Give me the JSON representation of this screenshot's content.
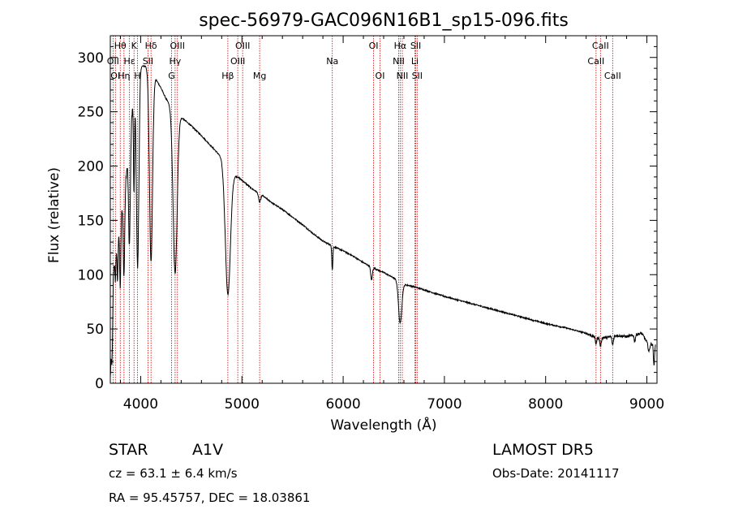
{
  "title": "spec-56979-GAC096N16B1_sp15-096.fits",
  "chart_data": {
    "type": "line",
    "title": "spec-56979-GAC096N16B1_sp15-096.fits",
    "xlabel": "Wavelength (Å)",
    "ylabel": "Flux (relative)",
    "xlim": [
      3700,
      9100
    ],
    "ylim": [
      0,
      320
    ],
    "x_ticks": [
      4000,
      5000,
      6000,
      7000,
      8000,
      9000
    ],
    "y_ticks": [
      0,
      50,
      100,
      150,
      200,
      250,
      300
    ],
    "grid": false,
    "line_color": "#000000",
    "marker_color": "#cc0000",
    "spectral_lines": [
      {
        "label": "Hθ",
        "wavelength": 3798,
        "row": 0
      },
      {
        "label": "OII",
        "wavelength": 3727,
        "row": 1
      },
      {
        "label": "OI",
        "wavelength": 3750,
        "row": 2
      },
      {
        "label": "Hη",
        "wavelength": 3835,
        "row": 2
      },
      {
        "label": "Hε",
        "wavelength": 3889,
        "row": 1
      },
      {
        "label": "K",
        "wavelength": 3934,
        "row": 0
      },
      {
        "label": "H",
        "wavelength": 3969,
        "row": 2
      },
      {
        "label": "SII",
        "wavelength": 4072,
        "row": 1
      },
      {
        "label": "Hδ",
        "wavelength": 4102,
        "row": 0
      },
      {
        "label": "OIII",
        "wavelength": 4363,
        "row": 0
      },
      {
        "label": "Hγ",
        "wavelength": 4340,
        "row": 1
      },
      {
        "label": "G",
        "wavelength": 4305,
        "row": 2
      },
      {
        "label": "Hβ",
        "wavelength": 4861,
        "row": 2
      },
      {
        "label": "OIII",
        "wavelength": 4959,
        "row": 1
      },
      {
        "label": "OIII",
        "wavelength": 5007,
        "row": 0
      },
      {
        "label": "Mg",
        "wavelength": 5175,
        "row": 2
      },
      {
        "label": "Na",
        "wavelength": 5893,
        "row": 1
      },
      {
        "label": "OI",
        "wavelength": 6300,
        "row": 0
      },
      {
        "label": "OI",
        "wavelength": 6364,
        "row": 2
      },
      {
        "label": "NII",
        "wavelength": 6548,
        "row": 1
      },
      {
        "label": "Hα",
        "wavelength": 6563,
        "row": 0
      },
      {
        "label": "NII",
        "wavelength": 6584,
        "row": 2
      },
      {
        "label": "Li",
        "wavelength": 6708,
        "row": 1
      },
      {
        "label": "SII",
        "wavelength": 6717,
        "row": 0
      },
      {
        "label": "SII",
        "wavelength": 6731,
        "row": 2
      },
      {
        "label": "CaII",
        "wavelength": 8498,
        "row": 1
      },
      {
        "label": "CaII",
        "wavelength": 8542,
        "row": 0
      },
      {
        "label": "CaII",
        "wavelength": 8662,
        "row": 2
      }
    ],
    "continuum": [
      [
        3700,
        5
      ],
      [
        3715,
        40
      ],
      [
        3730,
        105
      ],
      [
        3760,
        128
      ],
      [
        3800,
        150
      ],
      [
        3850,
        185
      ],
      [
        3900,
        240
      ],
      [
        3950,
        275
      ],
      [
        4000,
        292
      ],
      [
        4050,
        292
      ],
      [
        4100,
        285
      ],
      [
        4150,
        280
      ],
      [
        4200,
        272
      ],
      [
        4250,
        262
      ],
      [
        4300,
        255
      ],
      [
        4400,
        245
      ],
      [
        4500,
        237
      ],
      [
        4600,
        228
      ],
      [
        4700,
        218
      ],
      [
        4800,
        208
      ],
      [
        4870,
        195
      ],
      [
        4900,
        194
      ],
      [
        5000,
        187
      ],
      [
        5100,
        179
      ],
      [
        5200,
        173
      ],
      [
        5300,
        166
      ],
      [
        5400,
        160
      ],
      [
        5500,
        153
      ],
      [
        5600,
        146
      ],
      [
        5700,
        138
      ],
      [
        5800,
        131
      ],
      [
        5900,
        126
      ],
      [
        6000,
        122
      ],
      [
        6100,
        117
      ],
      [
        6200,
        111
      ],
      [
        6300,
        106
      ],
      [
        6400,
        102
      ],
      [
        6500,
        97
      ],
      [
        6600,
        91
      ],
      [
        6700,
        89
      ],
      [
        6800,
        86
      ],
      [
        7000,
        80
      ],
      [
        7200,
        75
      ],
      [
        7400,
        70
      ],
      [
        7600,
        65
      ],
      [
        7800,
        60
      ],
      [
        8000,
        55
      ],
      [
        8200,
        51
      ],
      [
        8400,
        46
      ],
      [
        8500,
        42
      ],
      [
        8600,
        42
      ],
      [
        8700,
        44
      ],
      [
        8800,
        43
      ],
      [
        8900,
        45
      ],
      [
        8950,
        46
      ],
      [
        9000,
        38
      ],
      [
        9050,
        36
      ],
      [
        9100,
        35
      ]
    ],
    "absorption_features": [
      {
        "wavelength": 3720,
        "depth": 30,
        "width": 6
      },
      {
        "wavelength": 3750,
        "depth": 25,
        "width": 5
      },
      {
        "wavelength": 3771,
        "depth": 40,
        "width": 5
      },
      {
        "wavelength": 3798,
        "depth": 60,
        "width": 6
      },
      {
        "wavelength": 3835,
        "depth": 75,
        "width": 7
      },
      {
        "wavelength": 3889,
        "depth": 100,
        "width": 9
      },
      {
        "wavelength": 3934,
        "depth": 90,
        "width": 5
      },
      {
        "wavelength": 3970,
        "depth": 175,
        "width": 12
      },
      {
        "wavelength": 4102,
        "depth": 172,
        "width": 15
      },
      {
        "wavelength": 4340,
        "depth": 150,
        "width": 20
      },
      {
        "wavelength": 4861,
        "depth": 115,
        "width": 25
      },
      {
        "wavelength": 5175,
        "depth": 8,
        "width": 10
      },
      {
        "wavelength": 5893,
        "depth": 22,
        "width": 5
      },
      {
        "wavelength": 6280,
        "depth": 12,
        "width": 8
      },
      {
        "wavelength": 6563,
        "depth": 38,
        "width": 16
      },
      {
        "wavelength": 8498,
        "depth": 6,
        "width": 6
      },
      {
        "wavelength": 8542,
        "depth": 8,
        "width": 7
      },
      {
        "wavelength": 8662,
        "depth": 8,
        "width": 7
      },
      {
        "wavelength": 8880,
        "depth": 6,
        "width": 6
      },
      {
        "wavelength": 9020,
        "depth": 8,
        "width": 8
      },
      {
        "wavelength": 9070,
        "depth": 20,
        "width": 5
      }
    ]
  },
  "info": {
    "object_class": "STAR",
    "subclass": "A1V",
    "survey": "LAMOST DR5",
    "cz": "cz = 63.1 ± 6.4 km/s",
    "obs_date": "Obs-Date: 20141117",
    "coords": "RA =  95.45757, DEC =  18.03861"
  }
}
